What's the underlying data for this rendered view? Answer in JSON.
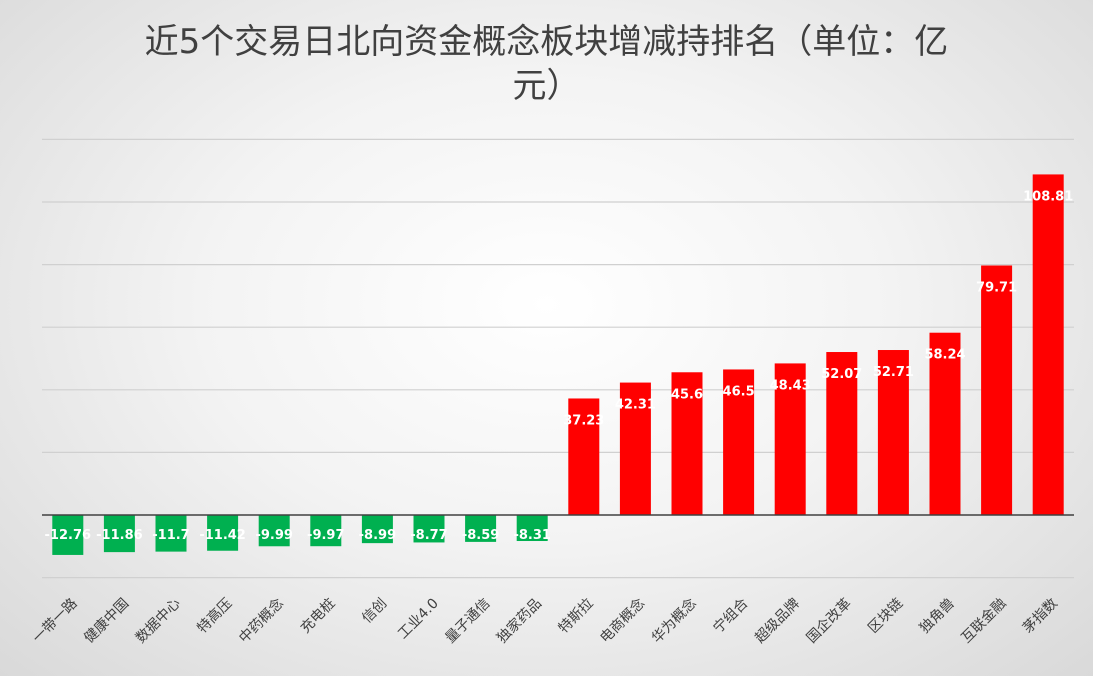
{
  "chart_data": {
    "type": "bar",
    "title_lines": [
      "近5个交易日北向资金概念板块增减持排名（单位：亿",
      "元）"
    ],
    "categories": [
      "一带一路",
      "健康中国",
      "数据中心",
      "特高压",
      "中药概念",
      "充电桩",
      "信创",
      "工业4.0",
      "量子通信",
      "独家药品",
      "特斯拉",
      "电商概念",
      "华为概念",
      "宁组合",
      "超级品牌",
      "国企改革",
      "区块链",
      "独角兽",
      "互联金融",
      "茅指数"
    ],
    "values": [
      -12.76,
      -11.86,
      -11.7,
      -11.42,
      -9.99,
      -9.97,
      -8.99,
      -8.77,
      -8.59,
      -8.31,
      37.23,
      42.31,
      45.6,
      46.5,
      48.43,
      52.07,
      52.71,
      58.24,
      79.71,
      108.81
    ],
    "value_labels": [
      "-12.76",
      "-11.86",
      "-11.7",
      "-11.42",
      "-9.99",
      "-9.97",
      "-8.99",
      "-8.77",
      "-8.59",
      "-8.31",
      "37.23",
      "42.31",
      "45.6",
      "46.5",
      "48.43",
      "52.07",
      "52.71",
      "58.24",
      "79.71",
      "108.81"
    ],
    "ylim": [
      -20,
      120
    ],
    "y_gridlines": [
      -20,
      0,
      20,
      40,
      60,
      80,
      100,
      120
    ],
    "y_tick_labels_shown": false,
    "grid": true,
    "legend": "none",
    "colors": {
      "positive": "#ff0000",
      "negative": "#00b050"
    }
  }
}
